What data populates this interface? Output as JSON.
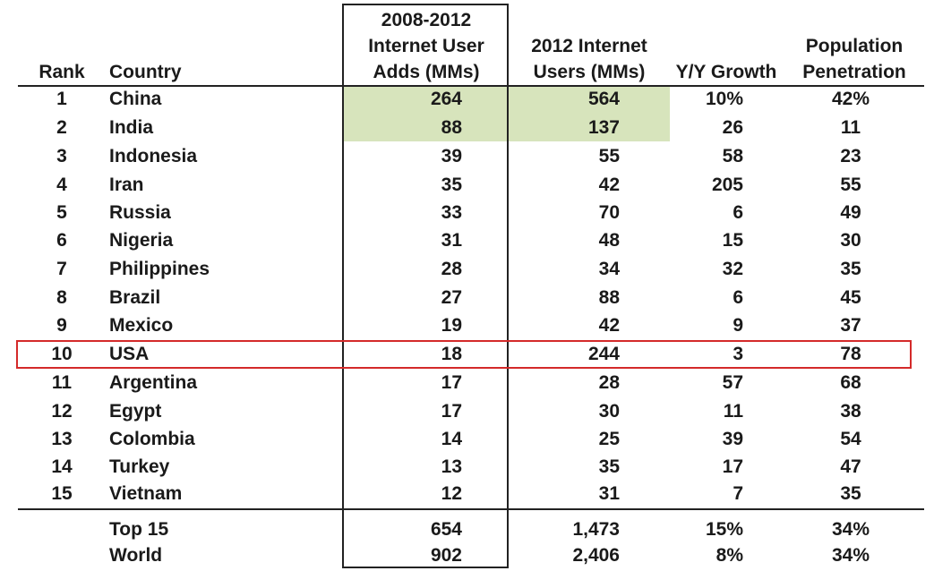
{
  "headers": {
    "rank": "Rank",
    "country": "Country",
    "adds": [
      "2008-2012",
      "Internet User",
      "Adds (MMs)"
    ],
    "users": [
      "2012 Internet",
      "Users (MMs)"
    ],
    "yy": "Y/Y Growth",
    "penetration": [
      "Population",
      "Penetration"
    ]
  },
  "rows": [
    {
      "rank": "1",
      "country": "China",
      "adds": "264",
      "users": "564",
      "yy": "10%",
      "pen": "42%"
    },
    {
      "rank": "2",
      "country": "India",
      "adds": "88",
      "users": "137",
      "yy": "26",
      "pen": "11"
    },
    {
      "rank": "3",
      "country": "Indonesia",
      "adds": "39",
      "users": "55",
      "yy": "58",
      "pen": "23"
    },
    {
      "rank": "4",
      "country": "Iran",
      "adds": "35",
      "users": "42",
      "yy": "205",
      "pen": "55"
    },
    {
      "rank": "5",
      "country": "Russia",
      "adds": "33",
      "users": "70",
      "yy": "6",
      "pen": "49"
    },
    {
      "rank": "6",
      "country": "Nigeria",
      "adds": "31",
      "users": "48",
      "yy": "15",
      "pen": "30"
    },
    {
      "rank": "7",
      "country": "Philippines",
      "adds": "28",
      "users": "34",
      "yy": "32",
      "pen": "35"
    },
    {
      "rank": "8",
      "country": "Brazil",
      "adds": "27",
      "users": "88",
      "yy": "6",
      "pen": "45"
    },
    {
      "rank": "9",
      "country": "Mexico",
      "adds": "19",
      "users": "42",
      "yy": "9",
      "pen": "37"
    },
    {
      "rank": "10",
      "country": "USA",
      "adds": "18",
      "users": "244",
      "yy": "3",
      "pen": "78"
    },
    {
      "rank": "11",
      "country": "Argentina",
      "adds": "17",
      "users": "28",
      "yy": "57",
      "pen": "68"
    },
    {
      "rank": "12",
      "country": "Egypt",
      "adds": "17",
      "users": "30",
      "yy": "11",
      "pen": "38"
    },
    {
      "rank": "13",
      "country": "Colombia",
      "adds": "14",
      "users": "25",
      "yy": "39",
      "pen": "54"
    },
    {
      "rank": "14",
      "country": "Turkey",
      "adds": "13",
      "users": "35",
      "yy": "17",
      "pen": "47"
    },
    {
      "rank": "15",
      "country": "Vietnam",
      "adds": "12",
      "users": "31",
      "yy": "7",
      "pen": "35"
    }
  ],
  "totals": [
    {
      "country": "Top 15",
      "adds": "654",
      "users": "1,473",
      "yy": "15%",
      "pen": "34%"
    },
    {
      "country": "World",
      "adds": "902",
      "users": "2,406",
      "yy": "8%",
      "pen": "34%"
    }
  ],
  "colors": {
    "highlight_green": "#d7e4bc",
    "highlight_red_outline": "#d42a2a"
  }
}
